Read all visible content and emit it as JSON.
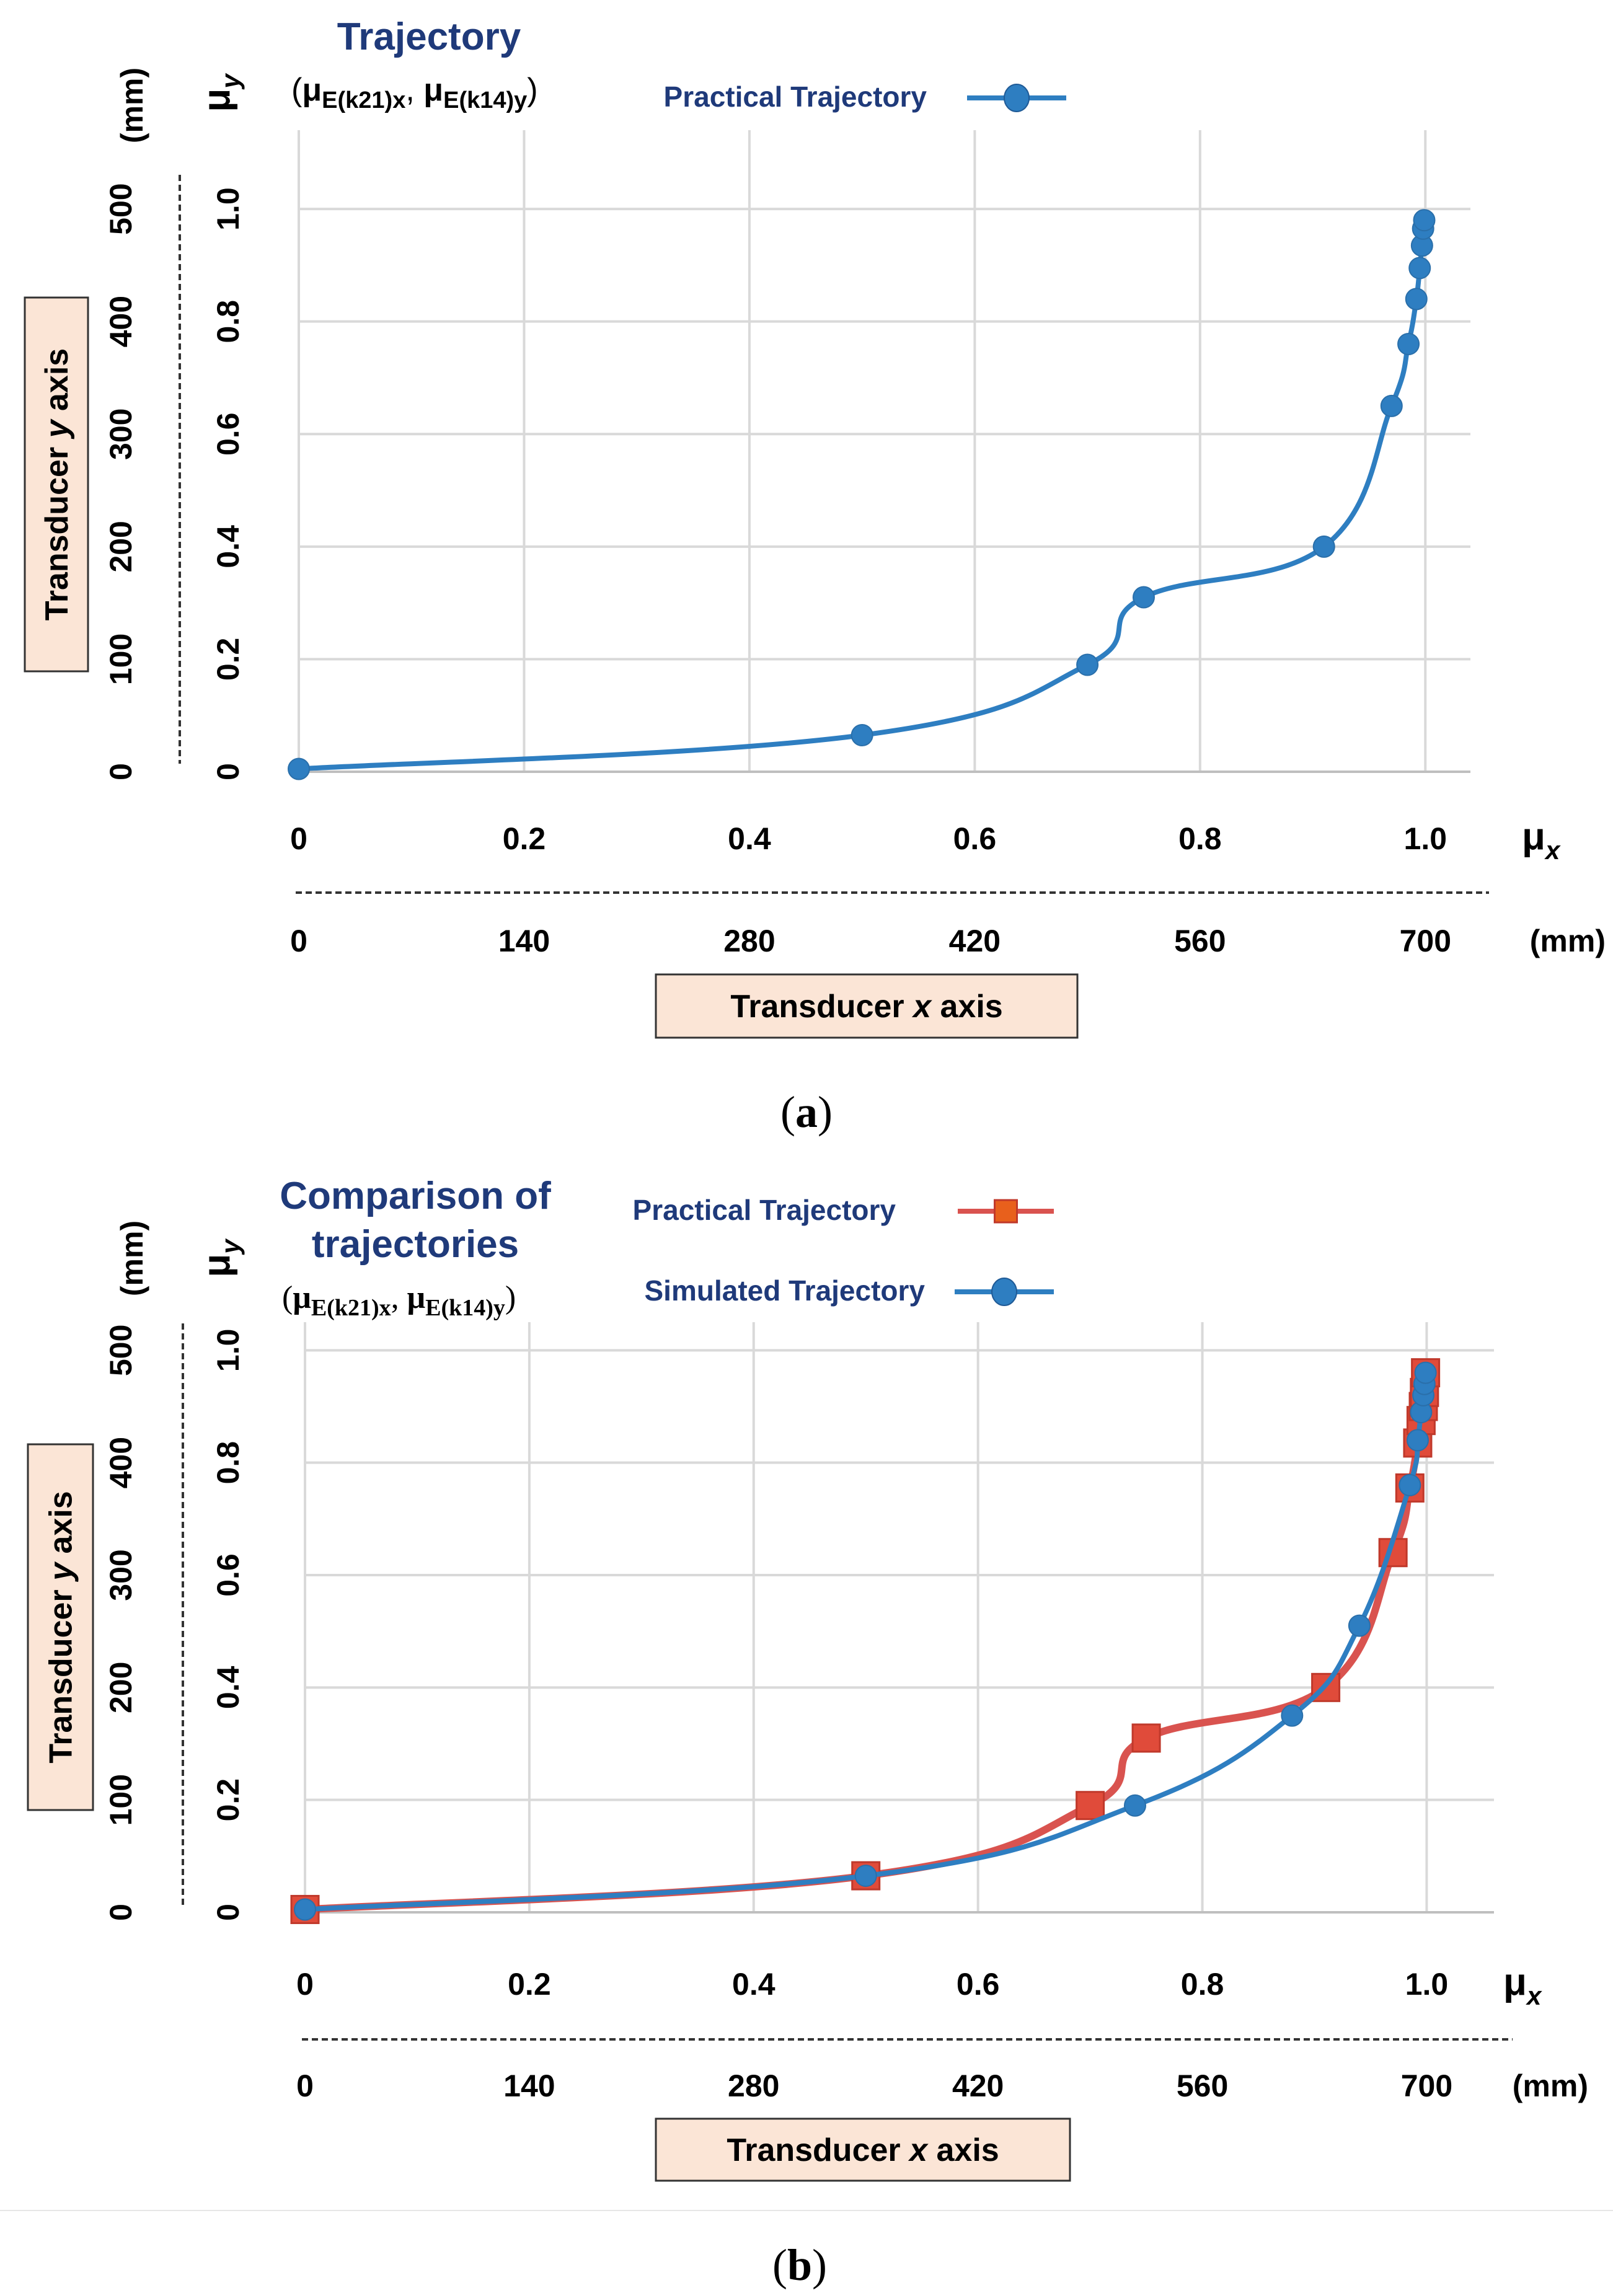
{
  "chart_data": [
    {
      "type": "line",
      "panel_label": "(a)",
      "title": "Trajectory",
      "subtitle": {
        "open": "(",
        "mu1": "μ",
        "sub1": "E(k21)x",
        "sep": ", ",
        "mu2": "μ",
        "sub2": "E(k14)y",
        "close": ")"
      },
      "y_symbol": "μ",
      "y_symbol_sub": "y",
      "x_symbol": "μ",
      "x_symbol_sub": "x",
      "y_mm_label": "(mm)",
      "x_mm_label": "(mm)",
      "xlabel": {
        "pre": "Transducer ",
        "var": "x",
        "post": " axis"
      },
      "ylabel": {
        "pre": "Transducer ",
        "var": "y",
        "post": " axis"
      },
      "xlim": [
        0,
        1.04
      ],
      "ylim": [
        0,
        1.14
      ],
      "x_ticks": [
        "0",
        "0.2",
        "0.4",
        "0.6",
        "0.8",
        "1.0"
      ],
      "y_ticks": [
        "0",
        "0.2",
        "0.4",
        "0.6",
        "0.8",
        "1.0"
      ],
      "x_mm_ticks": [
        "0",
        "140",
        "280",
        "420",
        "560",
        "700"
      ],
      "y_mm_ticks": [
        "0",
        "100",
        "200",
        "300",
        "400",
        "500"
      ],
      "legend_position": "top-right",
      "series": [
        {
          "name": "Practical Trajectory",
          "color": "#2E7EC1",
          "marker": "circle",
          "points": [
            [
              0,
              0.005
            ],
            [
              0.5,
              0.065
            ],
            [
              0.7,
              0.19
            ],
            [
              0.75,
              0.31
            ],
            [
              0.91,
              0.4
            ],
            [
              0.97,
              0.65
            ],
            [
              0.985,
              0.76
            ],
            [
              0.992,
              0.84
            ],
            [
              0.995,
              0.895
            ],
            [
              0.997,
              0.935
            ],
            [
              0.998,
              0.965
            ],
            [
              0.999,
              0.98
            ]
          ]
        }
      ]
    },
    {
      "type": "line",
      "panel_label": "(b)",
      "title": "Comparison of trajectories",
      "title_line1": "Comparison of",
      "title_line2": "trajectories",
      "subtitle": {
        "open": "(",
        "mu1": "μ",
        "sub1": "E(k21)x",
        "sep": ", ",
        "mu2": "μ",
        "sub2": "E(k14)y",
        "close": ")"
      },
      "y_symbol": "μ",
      "y_symbol_sub": "y",
      "x_symbol": "μ",
      "x_symbol_sub": "x",
      "y_mm_label": "(mm)",
      "x_mm_label": "(mm)",
      "xlabel": {
        "pre": "Transducer ",
        "var": "x",
        "post": " axis"
      },
      "ylabel": {
        "pre": "Transducer ",
        "var": "y",
        "post": " axis"
      },
      "xlim": [
        0,
        1.06
      ],
      "ylim": [
        0,
        1.05
      ],
      "x_ticks": [
        "0",
        "0.2",
        "0.4",
        "0.6",
        "0.8",
        "1.0"
      ],
      "y_ticks": [
        "0",
        "0.2",
        "0.4",
        "0.6",
        "0.8",
        "1.0"
      ],
      "x_mm_ticks": [
        "0",
        "140",
        "280",
        "420",
        "560",
        "700"
      ],
      "y_mm_ticks": [
        "0",
        "100",
        "200",
        "300",
        "400",
        "500"
      ],
      "legend_position": "top-right",
      "series": [
        {
          "name": "Practical Trajectory",
          "color": "#D9534F",
          "marker": "square",
          "marker_fill": "#E04B3A",
          "points": [
            [
              0,
              0.005
            ],
            [
              0.5,
              0.065
            ],
            [
              0.7,
              0.19
            ],
            [
              0.75,
              0.31
            ],
            [
              0.91,
              0.4
            ],
            [
              0.97,
              0.64
            ],
            [
              0.985,
              0.755
            ],
            [
              0.992,
              0.835
            ],
            [
              0.995,
              0.875
            ],
            [
              0.997,
              0.9
            ],
            [
              0.998,
              0.925
            ],
            [
              0.999,
              0.96
            ]
          ]
        },
        {
          "name": "Simulated Trajectory",
          "color": "#2E7EC1",
          "marker": "circle",
          "points": [
            [
              0,
              0.005
            ],
            [
              0.5,
              0.065
            ],
            [
              0.74,
              0.19
            ],
            [
              0.88,
              0.35
            ],
            [
              0.94,
              0.51
            ],
            [
              0.985,
              0.76
            ],
            [
              0.992,
              0.84
            ],
            [
              0.995,
              0.89
            ],
            [
              0.997,
              0.92
            ],
            [
              0.998,
              0.94
            ],
            [
              0.999,
              0.96
            ]
          ]
        }
      ]
    }
  ]
}
